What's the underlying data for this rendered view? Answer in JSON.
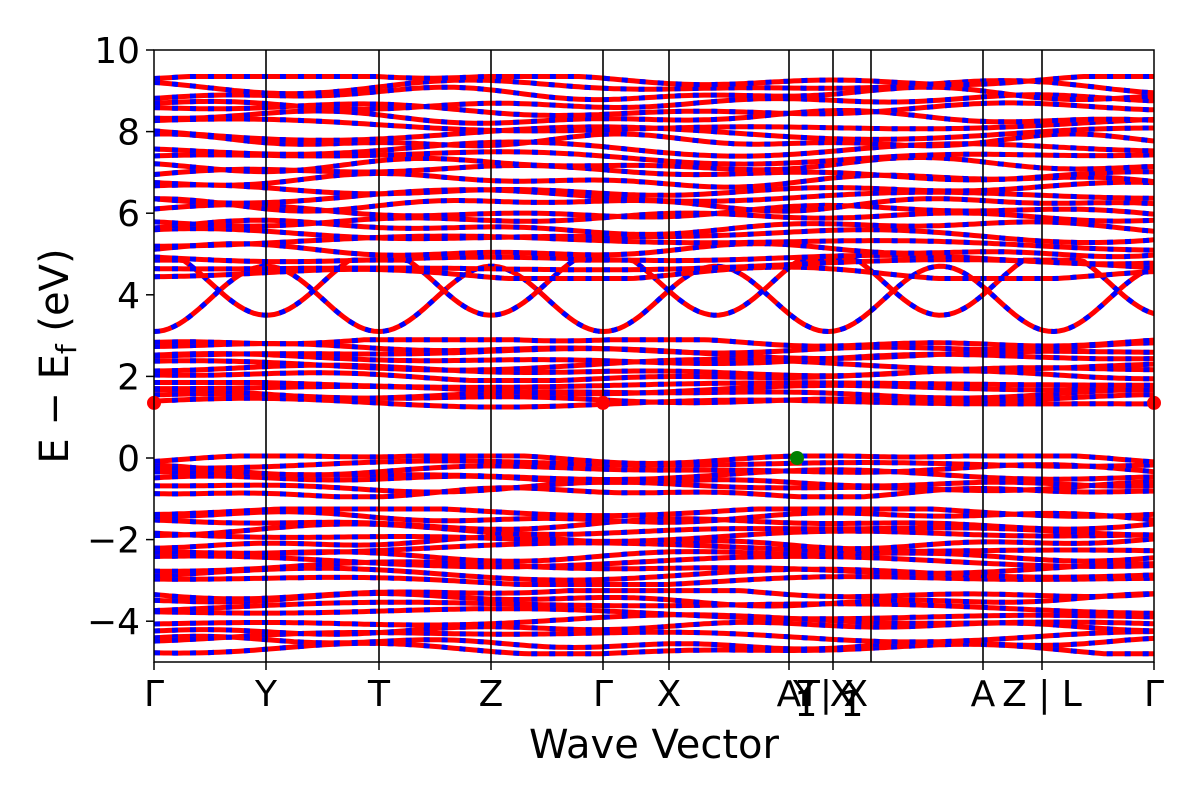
{
  "chart_data": {
    "type": "line",
    "title": "",
    "xlabel": "Wave Vector",
    "ylabel": "E − E",
    "ylabel_sub": "f",
    "ylabel_unit": " (eV)",
    "ylim": [
      -5,
      10
    ],
    "yticks": [
      10,
      8,
      6,
      4,
      2,
      0,
      -2,
      -4
    ],
    "ytick_labels": [
      "10",
      "8",
      "6",
      "4",
      "2",
      "0",
      "−2",
      "−4"
    ],
    "xlim": [
      0,
      1
    ],
    "kpoints": [
      {
        "x": 0.0,
        "label": "Γ"
      },
      {
        "x": 0.112,
        "label": "Y"
      },
      {
        "x": 0.225,
        "label": "T"
      },
      {
        "x": 0.337,
        "label": "Z"
      },
      {
        "x": 0.449,
        "label": "Γ"
      },
      {
        "x": 0.515,
        "label": "X"
      },
      {
        "x": 0.635,
        "label": "A"
      },
      {
        "x": 0.679,
        "label": "T| X"
      },
      {
        "x": 0.829,
        "label": "A"
      },
      {
        "x": 0.888,
        "label": "Z | L"
      },
      {
        "x": 1.0,
        "label": "Γ"
      }
    ],
    "extra_labels": [
      {
        "x": 0.65,
        "label": "Y"
      },
      {
        "x": 0.688,
        "label": "X"
      }
    ],
    "subscripts": [
      {
        "x": 0.652,
        "label": "1"
      },
      {
        "x": 0.698,
        "label": "1"
      }
    ],
    "grid_lines": [
      0.112,
      0.225,
      0.337,
      0.449,
      0.515,
      0.635,
      0.679,
      0.717,
      0.829,
      0.888
    ],
    "series_colors": {
      "spin_up": "#ff0000",
      "spin_down": "#0000ff"
    },
    "cbm_marker": {
      "color": "#ff0000",
      "points": [
        {
          "x": 0.0,
          "y": 1.35
        },
        {
          "x": 0.449,
          "y": 1.35
        },
        {
          "x": 1.0,
          "y": 1.35
        }
      ]
    },
    "vbm_marker": {
      "color": "#008000",
      "points": [
        {
          "x": 0.643,
          "y": 0.0
        }
      ]
    },
    "band_groups": [
      {
        "name": "valence-deep",
        "y_min": -4.7,
        "y_max": -3.3,
        "count": 9
      },
      {
        "name": "valence-mid",
        "y_min": -3.0,
        "y_max": -1.3,
        "count": 12
      },
      {
        "name": "valence-top",
        "y_min": -0.85,
        "y_max": 0.0,
        "count": 7
      },
      {
        "name": "conduction-low",
        "y_min": 1.35,
        "y_max": 1.8,
        "count": 5
      },
      {
        "name": "conduction-mid",
        "y_min": 2.0,
        "y_max": 2.85,
        "count": 7
      },
      {
        "name": "conduction-dispersive",
        "y_min": 3.1,
        "y_max": 4.8,
        "count": 2
      },
      {
        "name": "conduction-high",
        "y_min": 4.5,
        "y_max": 9.3,
        "count": 26
      }
    ]
  }
}
